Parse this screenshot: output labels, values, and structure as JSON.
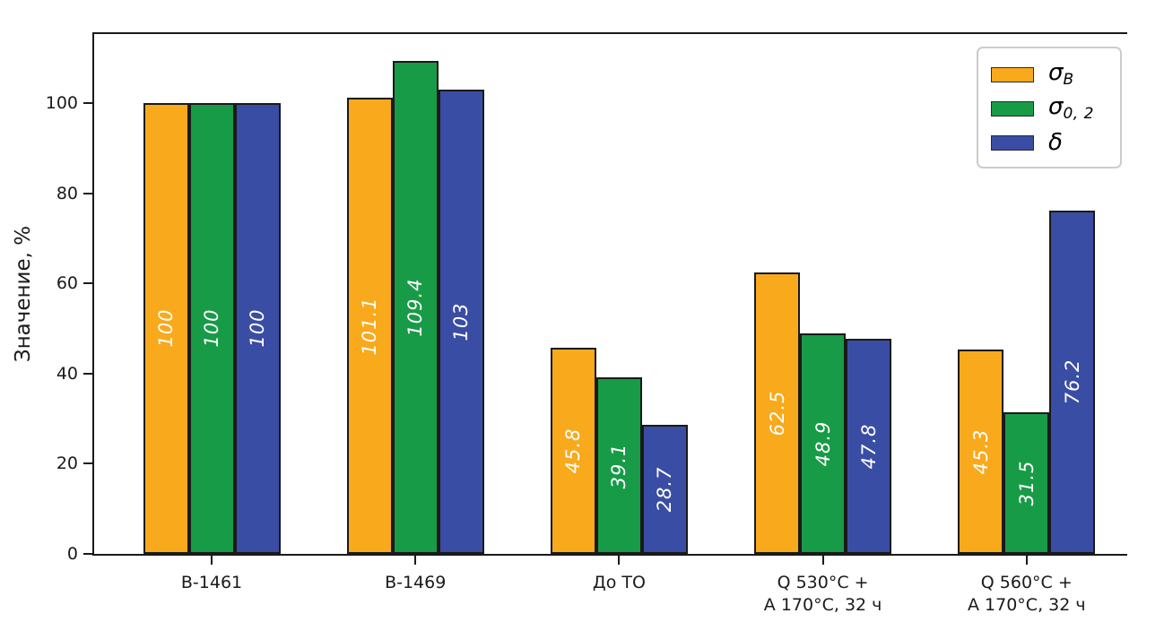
{
  "chart_data": {
    "type": "bar",
    "title": "",
    "ylabel": "Значение, %",
    "xlabel": "",
    "ylim": [
      0,
      115.3
    ],
    "yticks": [
      "0",
      "20",
      "40",
      "60",
      "80",
      "100"
    ],
    "ytick_values": [
      0,
      20,
      40,
      60,
      80,
      100
    ],
    "grid": false,
    "legend_position": "upper right",
    "bar_label_color": "#ffffff",
    "bar_edge_color": "#1a1a1a",
    "categories": [
      {
        "lines": [
          "В-1461"
        ]
      },
      {
        "lines": [
          "В-1469"
        ]
      },
      {
        "lines": [
          "До ТО"
        ]
      },
      {
        "lines": [
          "Q 530°C +",
          "А 170°C, 32 ч"
        ]
      },
      {
        "lines": [
          "Q 560°C +",
          "А 170°C, 32 ч"
        ]
      }
    ],
    "series": [
      {
        "name_base": "σ",
        "name_sub": "B",
        "color": "#F9A91C",
        "values": [
          100,
          101.1,
          45.8,
          62.5,
          45.3
        ],
        "labels": [
          "100",
          "101.1",
          "45.8",
          "62.5",
          "45.3"
        ]
      },
      {
        "name_base": "σ",
        "name_sub": "0, 2",
        "color": "#189B47",
        "values": [
          100,
          109.4,
          39.1,
          48.9,
          31.5
        ],
        "labels": [
          "100",
          "109.4",
          "39.1",
          "48.9",
          "31.5"
        ]
      },
      {
        "name_base": "δ",
        "name_sub": "",
        "color": "#3A4DA4",
        "values": [
          100,
          103,
          28.7,
          47.8,
          76.2
        ],
        "labels": [
          "100",
          "103",
          "28.7",
          "47.8",
          "76.2"
        ]
      }
    ]
  }
}
